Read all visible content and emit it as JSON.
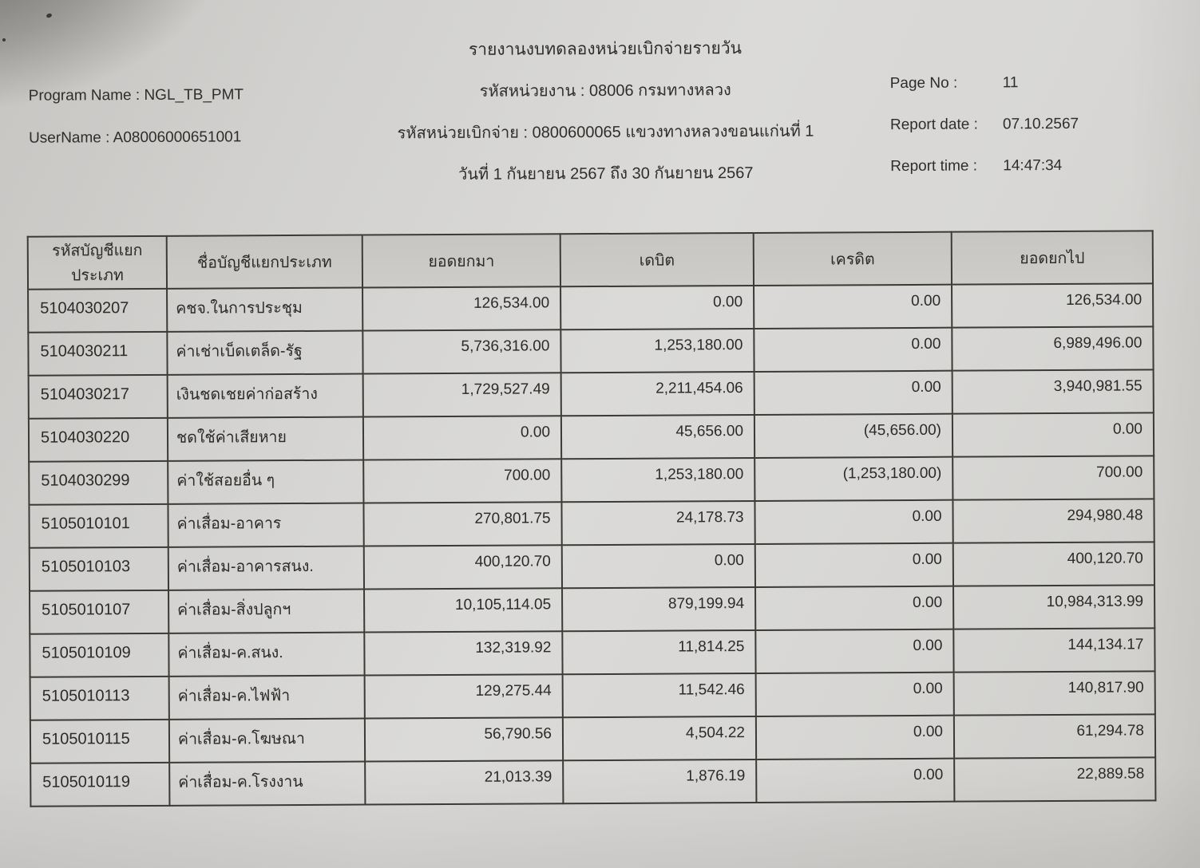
{
  "report": {
    "title": "รายงานงบทดลองหน่วยเบิกจ่ายรายวัน",
    "left": {
      "program_name": "Program Name : NGL_TB_PMT",
      "username": "UserName : A08006000651001"
    },
    "center": {
      "agency": "รหัสหน่วยงาน : 08006 กรมทางหลวง",
      "disbursement_unit": "รหัสหน่วยเบิกจ่าย : 0800600065 แขวงทางหลวงขอนแก่นที่ 1",
      "date_range": "วันที่ 1 กันยายน 2567 ถึง 30 กันยายน 2567"
    },
    "right": {
      "page_no_label": "Page No :",
      "page_no_value": "11",
      "report_date_label": "Report date :",
      "report_date_value": "07.10.2567",
      "report_time_label": "Report time :",
      "report_time_value": "14:47:34"
    }
  },
  "table": {
    "columns": [
      "รหัสบัญชีแยกประเภท",
      "ชื่อบัญชีแยกประเภท",
      "ยอดยกมา",
      "เดบิต",
      "เครดิต",
      "ยอดยกไป"
    ],
    "rows": [
      [
        "5104030207",
        "คชจ.ในการประชุม",
        "126,534.00",
        "0.00",
        "0.00",
        "126,534.00"
      ],
      [
        "5104030211",
        "ค่าเช่าเบ็ดเตล็ด-รัฐ",
        "5,736,316.00",
        "1,253,180.00",
        "0.00",
        "6,989,496.00"
      ],
      [
        "5104030217",
        "เงินชดเชยค่าก่อสร้าง",
        "1,729,527.49",
        "2,211,454.06",
        "0.00",
        "3,940,981.55"
      ],
      [
        "5104030220",
        "ชดใช้ค่าเสียหาย",
        "0.00",
        "45,656.00",
        "(45,656.00)",
        "0.00"
      ],
      [
        "5104030299",
        "ค่าใช้สอยอื่น ๆ",
        "700.00",
        "1,253,180.00",
        "(1,253,180.00)",
        "700.00"
      ],
      [
        "5105010101",
        "ค่าเสื่อม-อาคาร",
        "270,801.75",
        "24,178.73",
        "0.00",
        "294,980.48"
      ],
      [
        "5105010103",
        "ค่าเสื่อม-อาคารสนง.",
        "400,120.70",
        "0.00",
        "0.00",
        "400,120.70"
      ],
      [
        "5105010107",
        "ค่าเสื่อม-สิ่งปลูกฯ",
        "10,105,114.05",
        "879,199.94",
        "0.00",
        "10,984,313.99"
      ],
      [
        "5105010109",
        "ค่าเสื่อม-ค.สนง.",
        "132,319.92",
        "11,814.25",
        "0.00",
        "144,134.17"
      ],
      [
        "5105010113",
        "ค่าเสื่อม-ค.ไฟฟ้า",
        "129,275.44",
        "11,542.46",
        "0.00",
        "140,817.90"
      ],
      [
        "5105010115",
        "ค่าเสื่อม-ค.โฆษณา",
        "56,790.56",
        "4,504.22",
        "0.00",
        "61,294.78"
      ],
      [
        "5105010119",
        "ค่าเสื่อม-ค.โรงงาน",
        "21,013.39",
        "1,876.19",
        "0.00",
        "22,889.58"
      ]
    ]
  },
  "colors": {
    "paper": "#d8d7d5",
    "ink": "#2e2d2a",
    "table_border": "#3b3a35",
    "header_cell_fill": "#c9c8c5",
    "corner_shadow": "#262421"
  }
}
